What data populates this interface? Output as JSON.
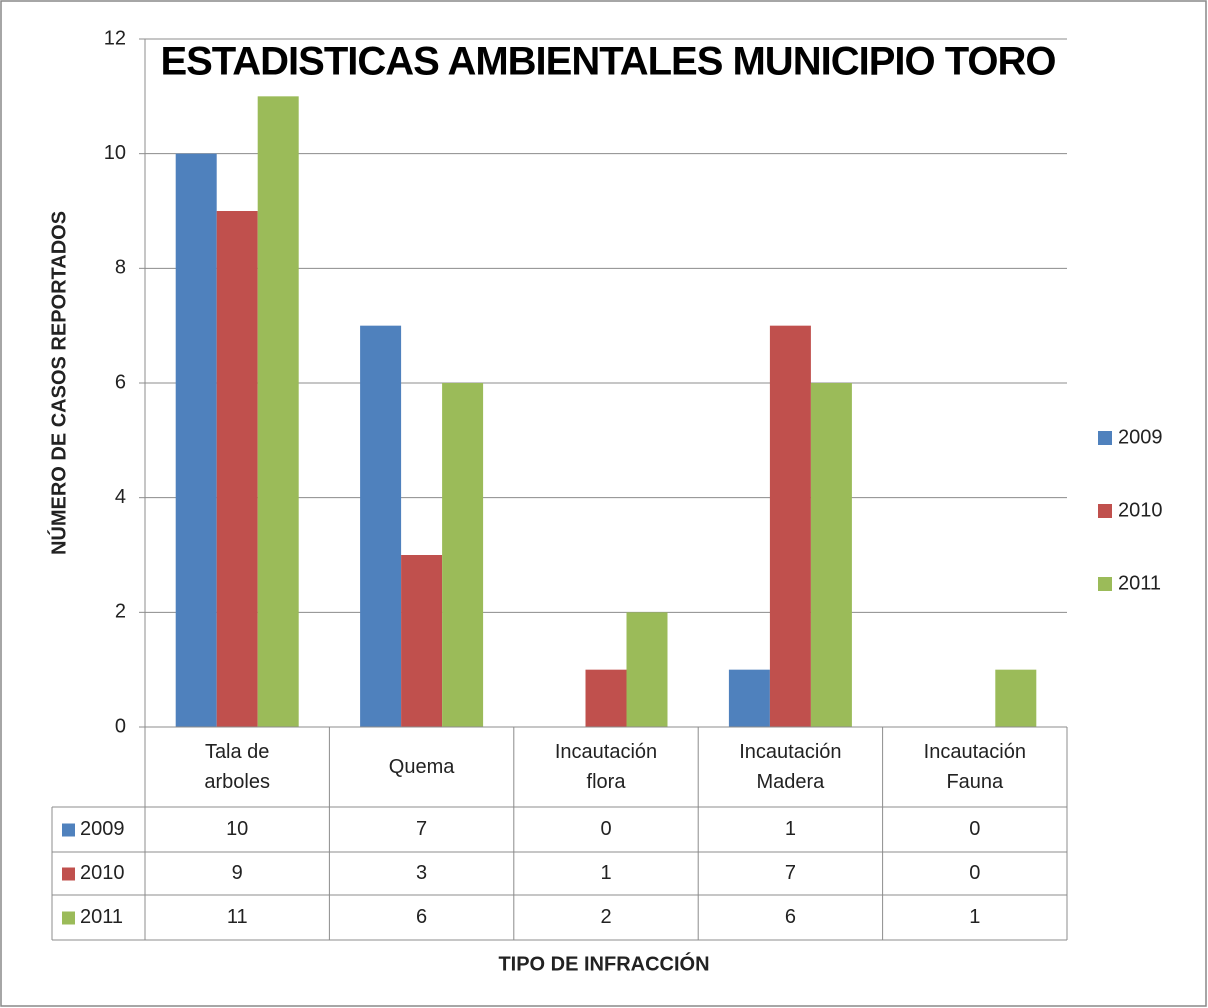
{
  "chart_data": {
    "type": "bar",
    "title": "ESTADISTICAS AMBIENTALES MUNICIPIO TORO",
    "y_label": "NÚMERO DE CASOS REPORTADOS",
    "x_label": "TIPO DE INFRACCIÓN",
    "categories": [
      "Tala de arboles",
      "Quema",
      "Incautación flora",
      "Incautación Madera",
      "Incautación Fauna"
    ],
    "series": [
      {
        "name": "2009",
        "color": "#4f81bd",
        "values": [
          10,
          7,
          0,
          1,
          0
        ]
      },
      {
        "name": "2010",
        "color": "#c0504d",
        "values": [
          9,
          3,
          1,
          7,
          0
        ]
      },
      {
        "name": "2011",
        "color": "#9bbb59",
        "values": [
          11,
          6,
          2,
          6,
          1
        ]
      }
    ],
    "ylim": [
      0,
      12
    ],
    "yticks": [
      0,
      2,
      4,
      6,
      8,
      10,
      12
    ],
    "grid": true,
    "legend": "right"
  }
}
